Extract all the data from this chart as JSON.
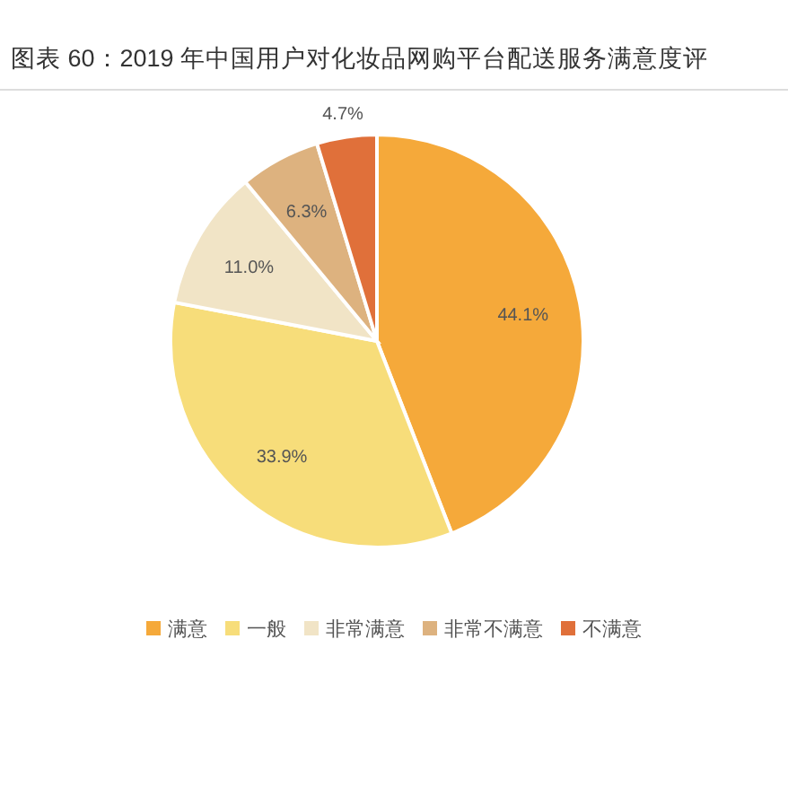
{
  "chart_data": {
    "type": "pie",
    "title": "图表 60：2019 年中国用户对化妆品网购平台配送服务满意度评",
    "categories": [
      "满意",
      "一般",
      "非常满意",
      "非常不满意",
      "不满意"
    ],
    "values": [
      44.1,
      33.9,
      11.0,
      6.3,
      4.7
    ],
    "colors": [
      "#f5a93a",
      "#f7dd7a",
      "#f1e4c6",
      "#ddb27f",
      "#e0703a"
    ],
    "value_labels": [
      "44.1%",
      "33.9%",
      "11.0%",
      "6.3%",
      "4.7%"
    ],
    "legend": "bottom"
  }
}
